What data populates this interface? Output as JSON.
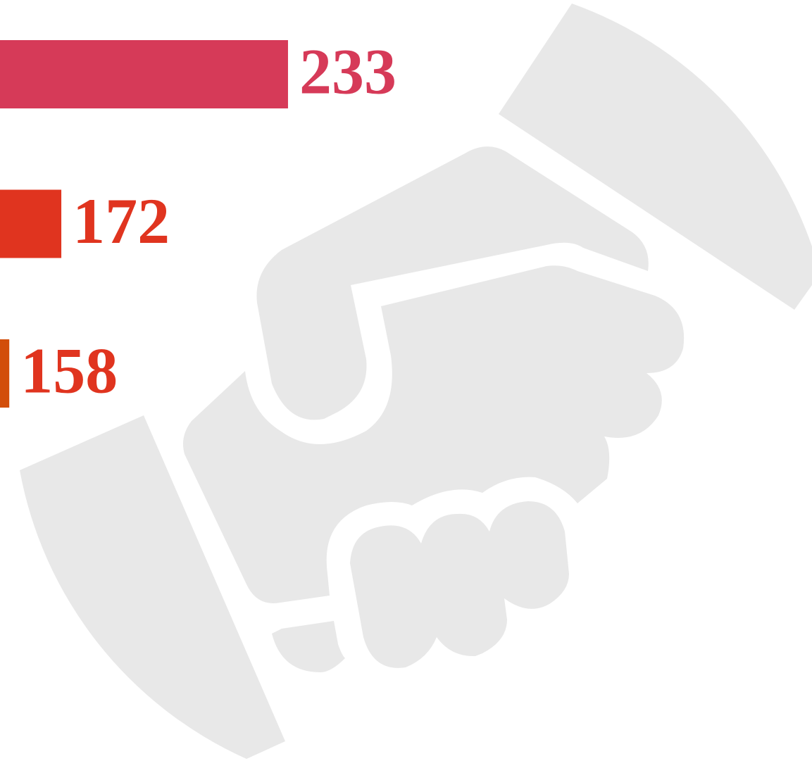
{
  "chart_data": {
    "type": "bar",
    "orientation": "horizontal",
    "values": [
      233,
      172,
      158
    ],
    "colors": [
      "#d63a58",
      "#e0341f",
      "#d24e0a"
    ],
    "label_colors": [
      "#d63a58",
      "#e0341f",
      "#e0341f"
    ],
    "xlim": [
      155.5,
      374
    ]
  }
}
